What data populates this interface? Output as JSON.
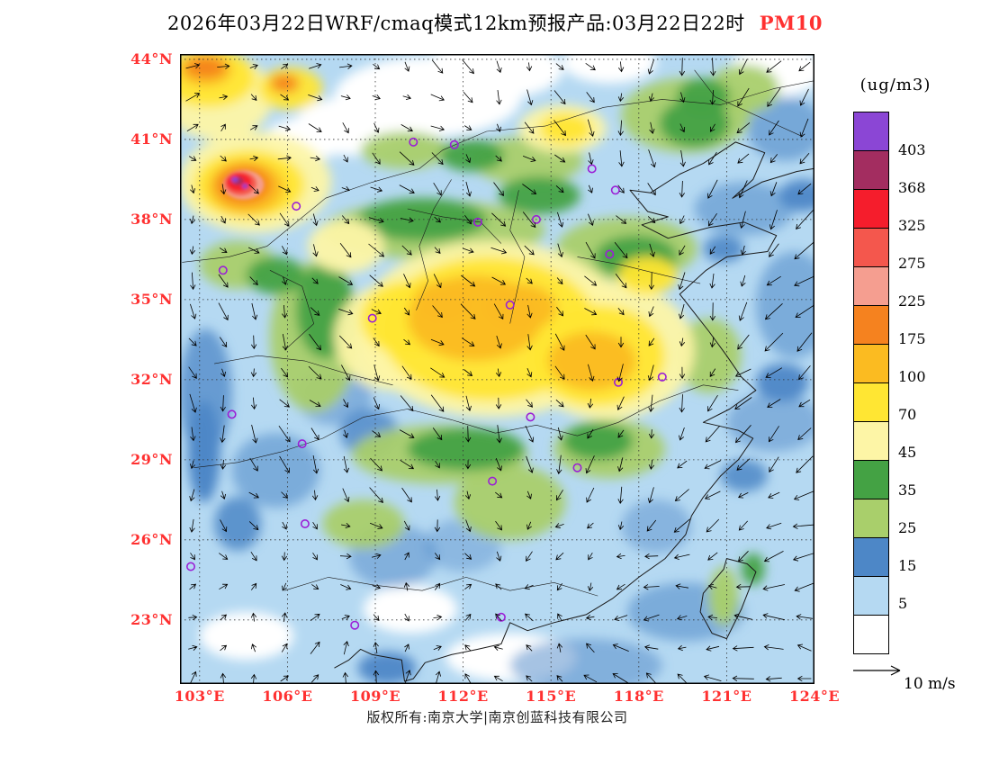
{
  "title": {
    "main": "2026年03月22日WRF/cmaq模式12km预报产品:03月22日22时",
    "pollutant": "PM10",
    "pollutant_color": "#FF3030"
  },
  "footer": {
    "copyright": "版权所有:南京大学|南京创蓝科技有限公司"
  },
  "legend": {
    "units": "(ug/m3)"
  },
  "wind_scale": {
    "label": "10 m/s"
  },
  "chart_data": {
    "type": "heatmap",
    "title": "2026年03月22日WRF/cmaq模式12km预报产品:03月22日22时 PM10",
    "pollutant": "PM10",
    "units": "ug/m3",
    "valid_time": "03月22日22时",
    "axes": {
      "tick_color": "#FF3030",
      "lon_values": [
        103,
        106,
        109,
        112,
        115,
        118,
        121,
        124
      ],
      "lon_labels": [
        "103°E",
        "106°E",
        "109°E",
        "112°E",
        "115°E",
        "118°E",
        "121°E",
        "124°E"
      ],
      "lat_values": [
        44,
        41,
        38,
        35,
        32,
        29,
        26,
        23
      ],
      "lat_labels": [
        "44°N",
        "41°N",
        "38°N",
        "35°N",
        "32°N",
        "29°N",
        "26°N",
        "23°N"
      ]
    },
    "map": {
      "lon_min": 102.33,
      "lon_max": 124.0,
      "lat_min": 20.6,
      "lat_max": 44.2
    },
    "scale": {
      "values": [
        403,
        368,
        325,
        275,
        225,
        175,
        100,
        70,
        45,
        35,
        25,
        15,
        5
      ],
      "colors": [
        "#8B46D5",
        "#A32D60",
        "#F51D2C",
        "#F4574D",
        "#F59E90",
        "#F5821F",
        "#FBBB21",
        "#FFE633",
        "#FDF5A6",
        "#44A244",
        "#A9CF6B",
        "#4D87C7",
        "#B5D9F2",
        "#FFFFFF"
      ]
    },
    "base_value": 10,
    "field_blobs_format": [
      "lon",
      "lat",
      "rx_deg",
      "ry_deg",
      "value",
      "opacity(optional)"
    ],
    "field_blobs": [
      [
        110.8,
        42.6,
        3.2,
        1.5,
        2
      ],
      [
        113.0,
        43.6,
        2.4,
        1.1,
        2
      ],
      [
        108.2,
        41.5,
        2.0,
        1.1,
        2
      ],
      [
        117.0,
        43.9,
        1.6,
        0.8,
        2
      ],
      [
        122.7,
        43.6,
        1.6,
        1.0,
        2
      ],
      [
        106.6,
        41.0,
        1.4,
        0.8,
        2
      ],
      [
        110.2,
        23.4,
        1.6,
        0.9,
        2
      ],
      [
        113.6,
        21.6,
        2.2,
        0.9,
        2
      ],
      [
        104.6,
        22.4,
        1.6,
        0.9,
        2
      ],
      [
        121.6,
        38.4,
        1.7,
        1.0,
        20,
        0.55
      ],
      [
        123.3,
        34.8,
        1.3,
        2.0,
        20,
        0.55
      ],
      [
        122.6,
        30.4,
        1.6,
        1.1,
        20,
        0.5
      ],
      [
        119.6,
        23.3,
        2.0,
        1.1,
        20,
        0.55
      ],
      [
        116.2,
        21.3,
        2.6,
        1.0,
        20,
        0.5
      ],
      [
        109.6,
        25.4,
        1.5,
        1.2,
        20,
        0.5
      ],
      [
        105.6,
        28.6,
        1.5,
        1.4,
        20,
        0.55
      ],
      [
        103.2,
        31.5,
        0.9,
        2.4,
        20,
        0.75
      ],
      [
        107.6,
        31.4,
        1.3,
        1.1,
        20,
        0.5
      ],
      [
        123.0,
        41.4,
        1.3,
        1.2,
        20,
        0.6
      ],
      [
        118.6,
        26.5,
        1.2,
        1.0,
        20,
        0.45
      ],
      [
        112.0,
        25.8,
        1.3,
        1.0,
        20,
        0.4
      ],
      [
        103.15,
        29.3,
        0.55,
        1.9,
        20,
        1
      ],
      [
        122.9,
        31.9,
        0.9,
        0.7,
        20,
        0.95
      ],
      [
        123.6,
        38.9,
        0.8,
        0.6,
        20,
        0.95
      ],
      [
        120.9,
        36.9,
        0.7,
        0.5,
        20,
        0.9
      ],
      [
        109.4,
        21.2,
        1.0,
        0.6,
        20,
        0.95
      ],
      [
        104.3,
        26.6,
        0.8,
        1.0,
        20,
        0.85
      ],
      [
        121.6,
        28.4,
        0.8,
        0.6,
        20,
        0.85
      ],
      [
        108.8,
        30.0,
        1.0,
        0.9,
        20,
        0.8
      ],
      [
        111.0,
        37.6,
        3.8,
        1.1,
        30
      ],
      [
        106.9,
        33.6,
        1.5,
        2.8,
        30
      ],
      [
        111.2,
        29.2,
        3.0,
        1.1,
        30
      ],
      [
        117.6,
        36.9,
        2.4,
        1.2,
        30
      ],
      [
        119.6,
        41.9,
        2.2,
        1.4,
        30
      ],
      [
        114.2,
        40.2,
        1.9,
        0.9,
        30
      ],
      [
        120.4,
        32.9,
        1.1,
        1.4,
        30
      ],
      [
        113.6,
        27.4,
        1.9,
        1.4,
        30
      ],
      [
        117.0,
        29.4,
        1.9,
        1.1,
        30
      ],
      [
        108.6,
        26.6,
        1.4,
        0.9,
        30
      ],
      [
        121.6,
        42.9,
        1.2,
        0.9,
        30
      ],
      [
        120.9,
        23.9,
        0.5,
        1.1,
        30
      ],
      [
        104.3,
        36.3,
        1.3,
        0.9,
        30
      ],
      [
        110.0,
        40.6,
        1.5,
        0.7,
        30
      ],
      [
        110.6,
        38.0,
        2.2,
        0.8,
        40
      ],
      [
        107.3,
        34.6,
        1.0,
        1.8,
        40
      ],
      [
        112.1,
        29.4,
        2.0,
        0.8,
        40
      ],
      [
        117.9,
        36.6,
        1.4,
        0.8,
        40
      ],
      [
        114.6,
        38.9,
        1.4,
        0.7,
        40
      ],
      [
        119.9,
        41.6,
        1.2,
        0.9,
        40
      ],
      [
        116.6,
        29.7,
        1.2,
        0.7,
        40
      ],
      [
        112.3,
        40.4,
        1.1,
        0.6,
        40
      ],
      [
        105.6,
        35.9,
        1.0,
        0.7,
        40
      ],
      [
        120.2,
        42.6,
        0.9,
        0.7,
        40
      ],
      [
        121.9,
        24.9,
        0.4,
        0.6,
        40
      ],
      [
        113.0,
        33.9,
        4.6,
        3.3,
        55
      ],
      [
        116.9,
        33.1,
        3.0,
        2.6,
        55
      ],
      [
        109.6,
        33.6,
        2.0,
        2.0,
        55
      ],
      [
        104.9,
        39.4,
        2.6,
        1.9,
        55
      ],
      [
        103.6,
        42.6,
        1.9,
        1.6,
        55
      ],
      [
        115.4,
        41.4,
        1.5,
        0.9,
        55
      ],
      [
        108.0,
        37.0,
        1.3,
        1.0,
        55
      ],
      [
        112.9,
        33.9,
        3.7,
        2.7,
        85
      ],
      [
        116.6,
        32.9,
        2.3,
        1.9,
        85
      ],
      [
        110.1,
        34.3,
        1.6,
        1.4,
        85
      ],
      [
        104.7,
        39.3,
        1.9,
        1.3,
        85
      ],
      [
        103.3,
        43.3,
        1.6,
        1.1,
        85
      ],
      [
        106.1,
        42.9,
        1.1,
        0.8,
        85
      ],
      [
        115.5,
        41.4,
        0.9,
        0.6,
        85
      ],
      [
        118.3,
        35.9,
        1.0,
        0.7,
        85
      ],
      [
        112.4,
        34.3,
        2.3,
        1.6,
        130
      ],
      [
        116.4,
        32.7,
        1.5,
        1.1,
        130
      ],
      [
        113.9,
        34.7,
        1.3,
        0.9,
        130
      ],
      [
        104.6,
        39.2,
        1.3,
        1.0,
        130
      ],
      [
        111.3,
        34.9,
        1.0,
        0.8,
        130
      ],
      [
        103.2,
        43.6,
        0.9,
        0.6,
        130
      ],
      [
        104.5,
        39.3,
        0.95,
        0.75,
        200
      ],
      [
        103.2,
        43.7,
        0.7,
        0.4,
        200
      ],
      [
        105.9,
        43.1,
        0.5,
        0.35,
        200
      ],
      [
        104.5,
        39.3,
        0.7,
        0.55,
        250
      ],
      [
        104.4,
        39.35,
        0.55,
        0.45,
        300
      ],
      [
        104.35,
        39.4,
        0.42,
        0.34,
        345
      ],
      [
        104.3,
        39.45,
        0.2,
        0.16,
        385
      ],
      [
        104.2,
        39.5,
        0.12,
        0.1,
        410
      ],
      [
        104.55,
        39.25,
        0.1,
        0.09,
        410
      ]
    ],
    "stations_format": [
      "lon",
      "lat"
    ],
    "stations": [
      [
        111.7,
        40.8
      ],
      [
        106.3,
        38.5
      ],
      [
        112.5,
        37.9
      ],
      [
        114.5,
        38.0
      ],
      [
        116.4,
        39.9
      ],
      [
        117.2,
        39.1
      ],
      [
        117.0,
        36.7
      ],
      [
        113.6,
        34.8
      ],
      [
        108.9,
        34.3
      ],
      [
        103.8,
        36.1
      ],
      [
        104.1,
        30.7
      ],
      [
        106.5,
        29.6
      ],
      [
        114.3,
        30.6
      ],
      [
        117.3,
        31.9
      ],
      [
        118.8,
        32.1
      ],
      [
        113.0,
        28.2
      ],
      [
        115.9,
        28.7
      ],
      [
        106.6,
        26.6
      ],
      [
        102.7,
        25.0
      ],
      [
        108.3,
        22.8
      ],
      [
        113.3,
        23.1
      ],
      [
        110.3,
        40.9
      ]
    ],
    "marker_color": "#9B1FD6",
    "coastline": [
      [
        124.5,
        40.0
      ],
      [
        123.4,
        39.8
      ],
      [
        122.2,
        39.4
      ],
      [
        121.2,
        38.8
      ],
      [
        121.9,
        39.5
      ],
      [
        122.3,
        40.5
      ],
      [
        121.3,
        40.9
      ],
      [
        120.2,
        40.1
      ],
      [
        119.4,
        39.7
      ],
      [
        118.4,
        39.0
      ],
      [
        117.7,
        39.1
      ],
      [
        118.3,
        38.3
      ],
      [
        119.0,
        38.1
      ],
      [
        118.1,
        37.8
      ],
      [
        119.0,
        37.3
      ],
      [
        120.4,
        37.7
      ],
      [
        121.6,
        37.9
      ],
      [
        122.7,
        37.4
      ],
      [
        122.4,
        36.8
      ],
      [
        121.0,
        36.6
      ],
      [
        120.3,
        36.1
      ],
      [
        119.4,
        35.2
      ],
      [
        119.9,
        34.5
      ],
      [
        120.4,
        33.8
      ],
      [
        121.0,
        32.9
      ],
      [
        121.5,
        32.1
      ],
      [
        122.0,
        31.6
      ],
      [
        121.1,
        30.9
      ],
      [
        120.2,
        30.4
      ],
      [
        121.4,
        30.1
      ],
      [
        121.9,
        29.8
      ],
      [
        121.4,
        29.0
      ],
      [
        120.8,
        28.4
      ],
      [
        120.2,
        27.6
      ],
      [
        119.8,
        26.9
      ],
      [
        119.6,
        26.2
      ],
      [
        118.9,
        25.3
      ],
      [
        118.0,
        24.6
      ],
      [
        117.1,
        23.8
      ],
      [
        116.2,
        23.2
      ],
      [
        115.1,
        22.9
      ],
      [
        114.2,
        22.6
      ],
      [
        113.6,
        22.9
      ],
      [
        113.3,
        22.1
      ],
      [
        112.5,
        21.9
      ],
      [
        111.6,
        21.7
      ],
      [
        110.7,
        21.4
      ],
      [
        110.3,
        20.8
      ],
      [
        110.0,
        20.7
      ],
      [
        109.9,
        21.5
      ],
      [
        109.4,
        21.6
      ],
      [
        108.9,
        21.7
      ],
      [
        108.5,
        21.9
      ],
      [
        108.1,
        21.5
      ],
      [
        107.6,
        21.2
      ]
    ],
    "taiwan": [
      [
        121.0,
        25.3
      ],
      [
        121.7,
        25.1
      ],
      [
        122.0,
        24.8
      ],
      [
        121.5,
        23.4
      ],
      [
        121.0,
        22.3
      ],
      [
        120.5,
        22.5
      ],
      [
        120.1,
        23.3
      ],
      [
        120.2,
        24.0
      ],
      [
        120.9,
        24.9
      ],
      [
        121.0,
        25.3
      ]
    ],
    "borders": [
      [
        [
          102.4,
          36.4
        ],
        [
          104.0,
          36.6
        ],
        [
          105.3,
          37.0
        ],
        [
          106.3,
          37.9
        ],
        [
          107.3,
          38.8
        ],
        [
          108.9,
          39.4
        ],
        [
          110.5,
          39.9
        ],
        [
          111.3,
          40.6
        ],
        [
          112.8,
          41.3
        ],
        [
          114.8,
          41.5
        ],
        [
          116.8,
          42.2
        ],
        [
          118.8,
          42.5
        ],
        [
          120.8,
          42.3
        ],
        [
          122.6,
          42.9
        ],
        [
          124.0,
          43.2
        ]
      ],
      [
        [
          102.8,
          28.7
        ],
        [
          104.3,
          28.9
        ],
        [
          105.8,
          29.3
        ],
        [
          107.2,
          29.8
        ],
        [
          108.6,
          30.6
        ],
        [
          110.1,
          30.9
        ],
        [
          111.6,
          30.5
        ],
        [
          113.1,
          30.0
        ],
        [
          114.5,
          30.3
        ],
        [
          115.9,
          29.9
        ],
        [
          117.3,
          30.4
        ],
        [
          118.7,
          31.2
        ],
        [
          120.2,
          31.8
        ],
        [
          121.4,
          31.6
        ]
      ],
      [
        [
          110.4,
          34.6
        ],
        [
          110.8,
          35.7
        ],
        [
          110.5,
          37.0
        ],
        [
          111.0,
          38.4
        ],
        [
          111.6,
          39.5
        ]
      ],
      [
        [
          113.6,
          34.1
        ],
        [
          113.9,
          35.6
        ],
        [
          114.1,
          36.6
        ],
        [
          113.6,
          37.6
        ],
        [
          113.9,
          39.1
        ]
      ],
      [
        [
          105.9,
          24.1
        ],
        [
          107.4,
          24.6
        ],
        [
          109.0,
          24.3
        ],
        [
          110.6,
          24.1
        ],
        [
          112.1,
          24.6
        ],
        [
          113.6,
          24.1
        ],
        [
          115.1,
          24.4
        ],
        [
          116.6,
          23.9
        ]
      ],
      [
        [
          103.5,
          32.6
        ],
        [
          105.0,
          32.9
        ],
        [
          106.6,
          32.7
        ],
        [
          108.1,
          32.2
        ],
        [
          109.6,
          31.8
        ]
      ],
      [
        [
          115.9,
          36.6
        ],
        [
          117.4,
          36.3
        ],
        [
          118.9,
          35.9
        ],
        [
          120.1,
          35.6
        ]
      ],
      [
        [
          105.9,
          33.1
        ],
        [
          106.9,
          34.1
        ],
        [
          106.5,
          35.5
        ],
        [
          105.4,
          36.1
        ]
      ],
      [
        [
          119.9,
          43.6
        ],
        [
          120.6,
          42.6
        ],
        [
          121.6,
          42.1
        ],
        [
          122.6,
          41.6
        ],
        [
          123.6,
          41.1
        ]
      ],
      [
        [
          110.1,
          38.4
        ],
        [
          111.3,
          38.1
        ],
        [
          112.6,
          37.9
        ],
        [
          113.3,
          37.1
        ]
      ]
    ],
    "wind": {
      "ref_label": "10 m/s",
      "spacing_px": 34,
      "len_scale": 15,
      "anchors": [
        [
          [
            0.7,
            -0.8
          ],
          [
            0.6,
            0.5
          ],
          [
            0.3,
            0.9
          ],
          [
            -0.9,
            1.0
          ]
        ],
        [
          [
            0.2,
            0.9
          ],
          [
            0.8,
            0.6
          ],
          [
            0.7,
            0.8
          ],
          [
            -1.2,
            1.1
          ]
        ],
        [
          [
            0.1,
            1.0
          ],
          [
            0.7,
            0.9
          ],
          [
            -0.3,
            1.0
          ],
          [
            -1.3,
            0.8
          ]
        ],
        [
          [
            0.3,
            -0.8
          ],
          [
            0.2,
            -0.9
          ],
          [
            -0.8,
            -0.5
          ],
          [
            -1.4,
            -0.3
          ]
        ]
      ]
    }
  }
}
